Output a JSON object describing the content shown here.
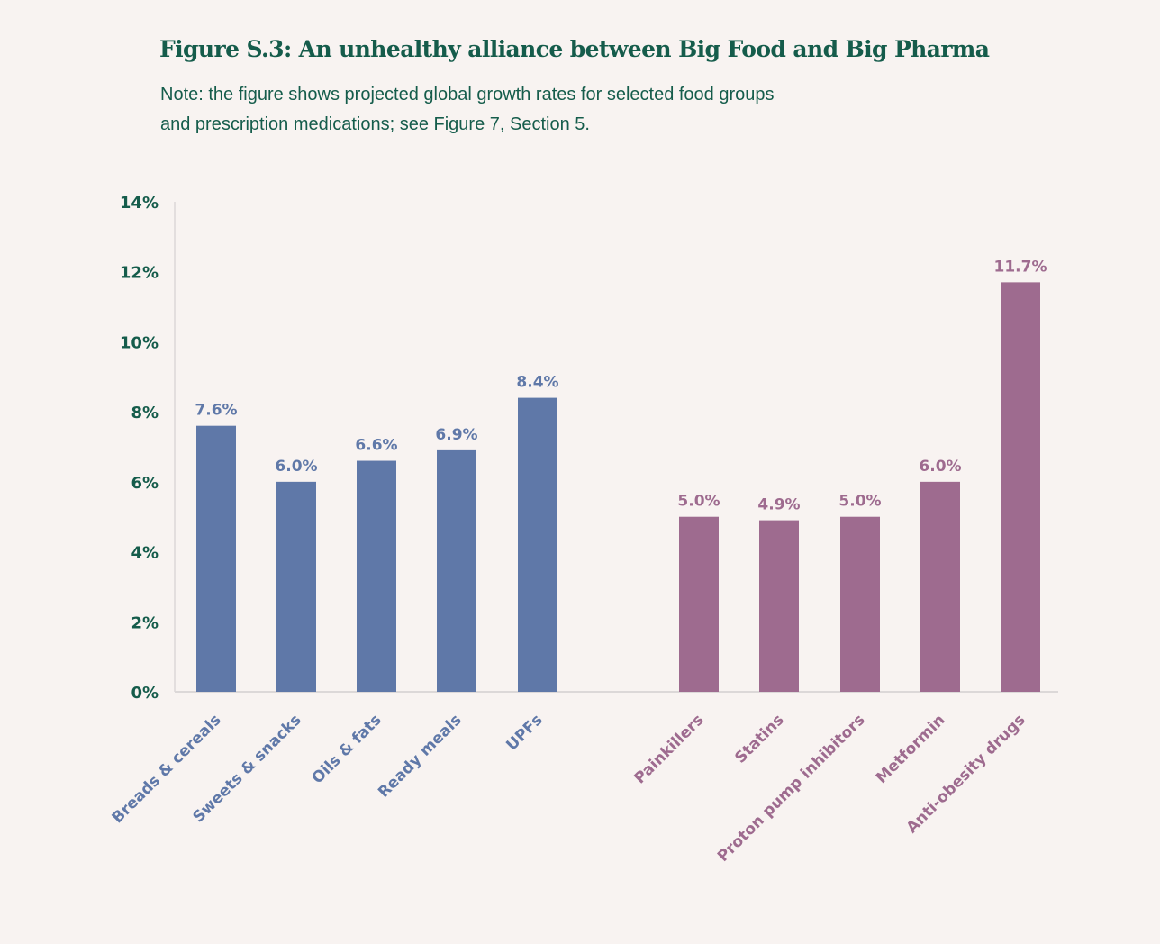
{
  "header": {
    "title": "Figure S.3: An unhealthy alliance between Big Food and Big Pharma",
    "note_line1": "Note: the figure shows projected global growth rates for selected food groups",
    "note_line2": "and prescription medications; see Figure 7, Section 5."
  },
  "colors": {
    "food": "#5f78a8",
    "pharma": "#9e6b8f",
    "axis_text": "#155c4b",
    "axis_line": "#dcd8d8"
  },
  "chart_data": {
    "type": "bar",
    "title": "Figure S.3: An unhealthy alliance between Big Food and Big Pharma",
    "xlabel": "",
    "ylabel": "",
    "ylim": [
      0,
      14
    ],
    "yticks": [
      "0%",
      "2%",
      "4%",
      "6%",
      "8%",
      "10%",
      "12%",
      "14%"
    ],
    "ytick_values": [
      0,
      2,
      4,
      6,
      8,
      10,
      12,
      14
    ],
    "grid": false,
    "legend": "none",
    "groups": [
      {
        "name": "food",
        "categories": [
          "Breads & cereals",
          "Sweets & snacks",
          "Oils & fats",
          "Ready meals",
          "UPFs"
        ],
        "values": [
          7.6,
          6.0,
          6.6,
          6.9,
          8.4
        ],
        "labels": [
          "7.6%",
          "6.0%",
          "6.6%",
          "6.9%",
          "8.4%"
        ]
      },
      {
        "name": "pharma",
        "categories": [
          "Painkillers",
          "Statins",
          "Proton pump inhibitors",
          "Metformin",
          "Anti-obesity drugs"
        ],
        "values": [
          5.0,
          4.9,
          5.0,
          6.0,
          11.7
        ],
        "labels": [
          "5.0%",
          "4.9%",
          "5.0%",
          "6.0%",
          "11.7%"
        ]
      }
    ]
  }
}
